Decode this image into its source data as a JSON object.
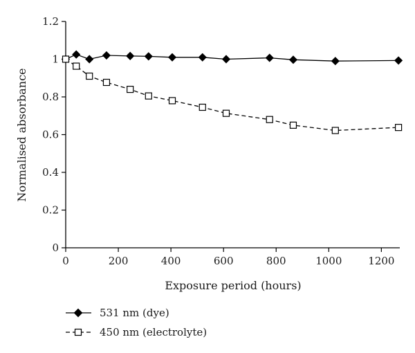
{
  "chart_data": {
    "type": "line",
    "title": "",
    "xlabel": "Exposure period (hours)",
    "ylabel": "Normalised absorbance",
    "xlim": [
      0,
      1270
    ],
    "ylim": [
      0,
      1.2
    ],
    "xticks": [
      0,
      200,
      400,
      600,
      800,
      1000,
      1200
    ],
    "yticks": [
      0,
      0.2,
      0.4,
      0.6,
      0.8,
      1,
      1.2
    ],
    "grid": false,
    "legend_position": "bottom-left",
    "series": [
      {
        "name": "531 nm (dye)",
        "marker": "filled-diamond",
        "line_style": "solid",
        "color": "#000000",
        "x": [
          0,
          40,
          90,
          155,
          245,
          315,
          405,
          520,
          610,
          775,
          865,
          1025,
          1265
        ],
        "y": [
          1.0,
          1.025,
          1.0,
          1.02,
          1.017,
          1.015,
          1.01,
          1.01,
          1.0,
          1.007,
          0.997,
          0.99,
          0.993
        ]
      },
      {
        "name": "450 nm (electrolyte)",
        "marker": "open-square",
        "line_style": "dashed",
        "color": "#000000",
        "x": [
          0,
          40,
          90,
          155,
          245,
          315,
          405,
          520,
          610,
          775,
          865,
          1025,
          1265
        ],
        "y": [
          1.0,
          0.963,
          0.91,
          0.877,
          0.84,
          0.805,
          0.78,
          0.745,
          0.713,
          0.68,
          0.65,
          0.622,
          0.638
        ]
      }
    ]
  }
}
